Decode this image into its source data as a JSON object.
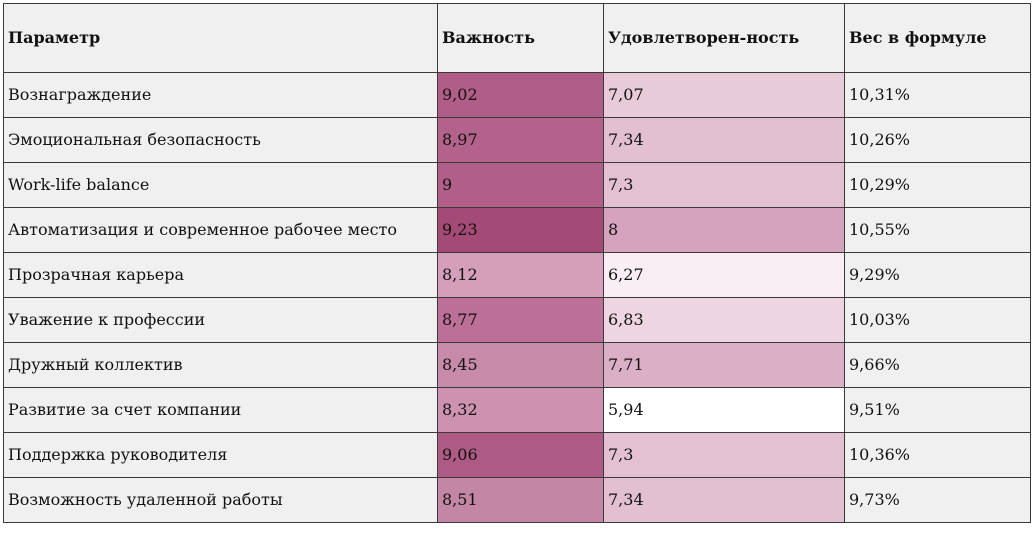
{
  "table": {
    "headers": {
      "param": "Параметр",
      "importance": "Важность",
      "satisfaction": "Удовлетворен-ность",
      "weight": "Вес в формуле"
    },
    "rows": [
      {
        "param": "Вознаграждение",
        "importance": "9,02",
        "satisfaction": "7,07",
        "weight": "10,31%",
        "importance_color": "#b05d87",
        "satisfaction_color": "#e8cbd9"
      },
      {
        "param": "Эмоциональная безопасность",
        "importance": "8,97",
        "satisfaction": "7,34",
        "weight": "10,26%",
        "importance_color": "#b3628b",
        "satisfaction_color": "#e2bfd1"
      },
      {
        "param": "Work-life balance",
        "importance": "9",
        "satisfaction": "7,3",
        "weight": "10,29%",
        "importance_color": "#b15f88",
        "satisfaction_color": "#e3c1d2"
      },
      {
        "param": "Автоматизация и современное рабочее место",
        "importance": "9,23",
        "satisfaction": "8",
        "weight": "10,55%",
        "importance_color": "#a44a76",
        "satisfaction_color": "#d5a3bd"
      },
      {
        "param": "Прозрачная карьера",
        "importance": "8,12",
        "satisfaction": "6,27",
        "weight": "9,29%",
        "importance_color": "#d59fba",
        "satisfaction_color": "#f9eef3"
      },
      {
        "param": "Уважение к профессии",
        "importance": "8,77",
        "satisfaction": "6,83",
        "weight": "10,03%",
        "importance_color": "#bc7098",
        "satisfaction_color": "#edd5e1"
      },
      {
        "param": "Дружный коллектив",
        "importance": "8,45",
        "satisfaction": "7,71",
        "weight": "9,66%",
        "importance_color": "#c78aa9",
        "satisfaction_color": "#dbb0c6"
      },
      {
        "param": "Развитие за счет компании",
        "importance": "8,32",
        "satisfaction": "5,94",
        "weight": "9,51%",
        "importance_color": "#cc92b0",
        "satisfaction_color": "#ffffff"
      },
      {
        "param": "Поддержка руководителя",
        "importance": "9,06",
        "satisfaction": "7,3",
        "weight": "10,36%",
        "importance_color": "#ad5a84",
        "satisfaction_color": "#e3c1d2"
      },
      {
        "param": "Возможность удаленной работы",
        "importance": "8,51",
        "satisfaction": "7,34",
        "weight": "9,73%",
        "importance_color": "#c486a5",
        "satisfaction_color": "#e2bfd1"
      }
    ]
  }
}
